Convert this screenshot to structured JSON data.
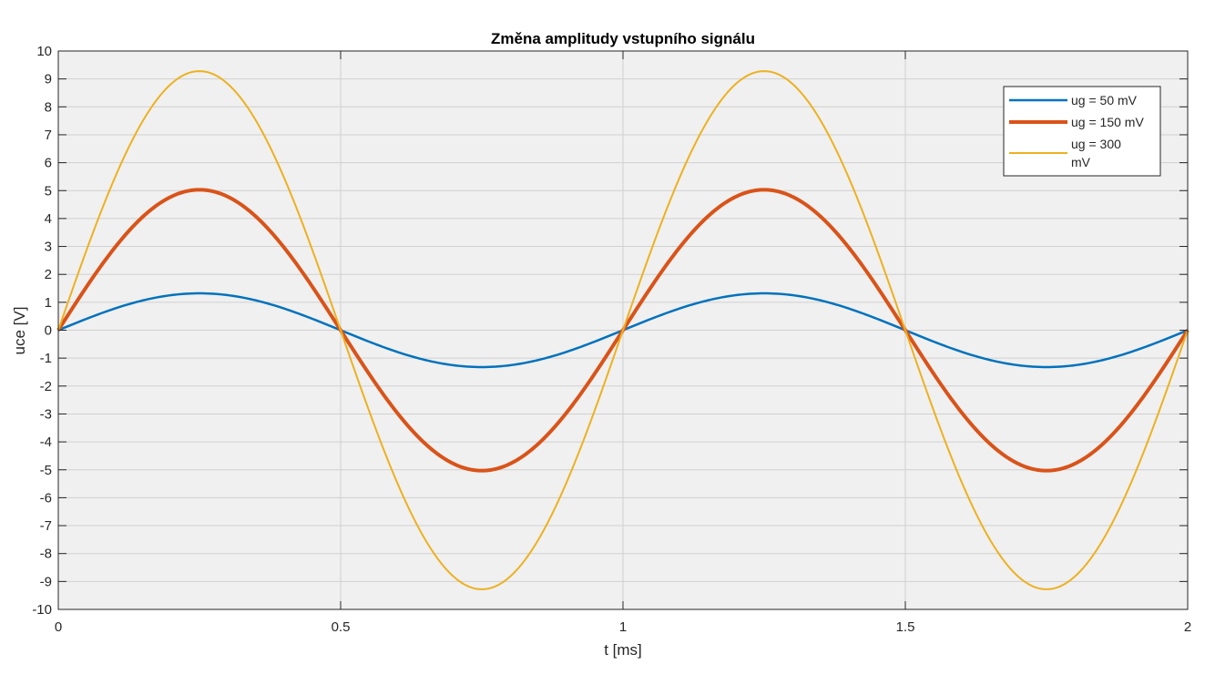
{
  "chart_data": {
    "type": "line",
    "title": "Změna amplitudy vstupního signálu",
    "xlabel": "t [ms]",
    "ylabel": "uce [V]",
    "xlim": [
      0,
      2
    ],
    "ylim": [
      -10,
      10
    ],
    "x_ticks": [
      0,
      0.5,
      1,
      1.5,
      2
    ],
    "x_tick_labels": [
      "0",
      "0.5",
      "1",
      "1.5",
      "2"
    ],
    "y_ticks": [
      -10,
      -9,
      -8,
      -7,
      -6,
      -5,
      -4,
      -3,
      -2,
      -1,
      0,
      1,
      2,
      3,
      4,
      5,
      6,
      7,
      8,
      9,
      10
    ],
    "y_tick_labels": [
      "-10",
      "-9",
      "-8",
      "-7",
      "-6",
      "-5",
      "-4",
      "-3",
      "-2",
      "-1",
      "0",
      "1",
      "2",
      "3",
      "4",
      "5",
      "6",
      "7",
      "8",
      "9",
      "10"
    ],
    "grid": true,
    "legend_position": "top-right",
    "background_color": "#f0f0f0",
    "x": [
      0,
      0.25,
      0.5,
      0.75,
      1,
      1.25,
      1.5,
      1.75,
      2
    ],
    "series": [
      {
        "name": "ug = 50 mV",
        "color": "#0072bd",
        "values": [
          0,
          1.32,
          0,
          -1.32,
          0,
          1.32,
          0,
          -1.32,
          0
        ]
      },
      {
        "name": "ug = 150 mV",
        "color": "#d95319",
        "values": [
          0,
          5.03,
          0,
          -5.03,
          0,
          5.03,
          0,
          -5.03,
          0
        ]
      },
      {
        "name": "ug = 300 mV",
        "legend_lines": [
          "ug = 300",
          " mV"
        ],
        "color": "#edb120",
        "values": [
          0,
          9.28,
          0,
          -9.28,
          0,
          9.28,
          0,
          -9.28,
          0
        ]
      }
    ]
  }
}
